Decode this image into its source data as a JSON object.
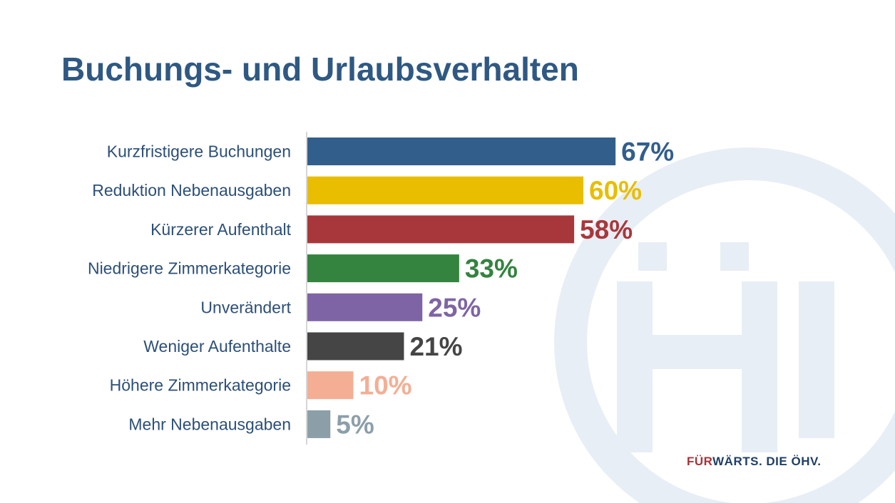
{
  "title": "Buchungs- und Urlaubsverhalten",
  "slogan": {
    "accent": "FÜR",
    "rest": "WÄRTS. DIE ÖHV."
  },
  "watermark": {
    "icon": "oehv-logo-icon",
    "color": "#e8eef5"
  },
  "chart_data": {
    "type": "bar",
    "orientation": "horizontal",
    "title": "Buchungs- und Urlaubsverhalten",
    "unit": "%",
    "xlim": [
      0,
      100
    ],
    "grid": false,
    "legend": "none",
    "categories": [
      "Kurzfristigere Buchungen",
      "Reduktion Nebenausgaben",
      "Kürzerer Aufenthalt",
      "Niedrigere Zimmerkategorie",
      "Unverändert",
      "Weniger Aufenthalte",
      "Höhere Zimmerkategorie",
      "Mehr Nebenausgaben"
    ],
    "values": [
      67,
      60,
      58,
      33,
      25,
      21,
      10,
      5
    ],
    "value_labels": [
      "67%",
      "60%",
      "58%",
      "33%",
      "25%",
      "21%",
      "10%",
      "5%"
    ],
    "colors": [
      "#325e8c",
      "#e9bd00",
      "#a8373b",
      "#34833f",
      "#7f64a5",
      "#454545",
      "#f4ae94",
      "#8c9fa9"
    ]
  }
}
